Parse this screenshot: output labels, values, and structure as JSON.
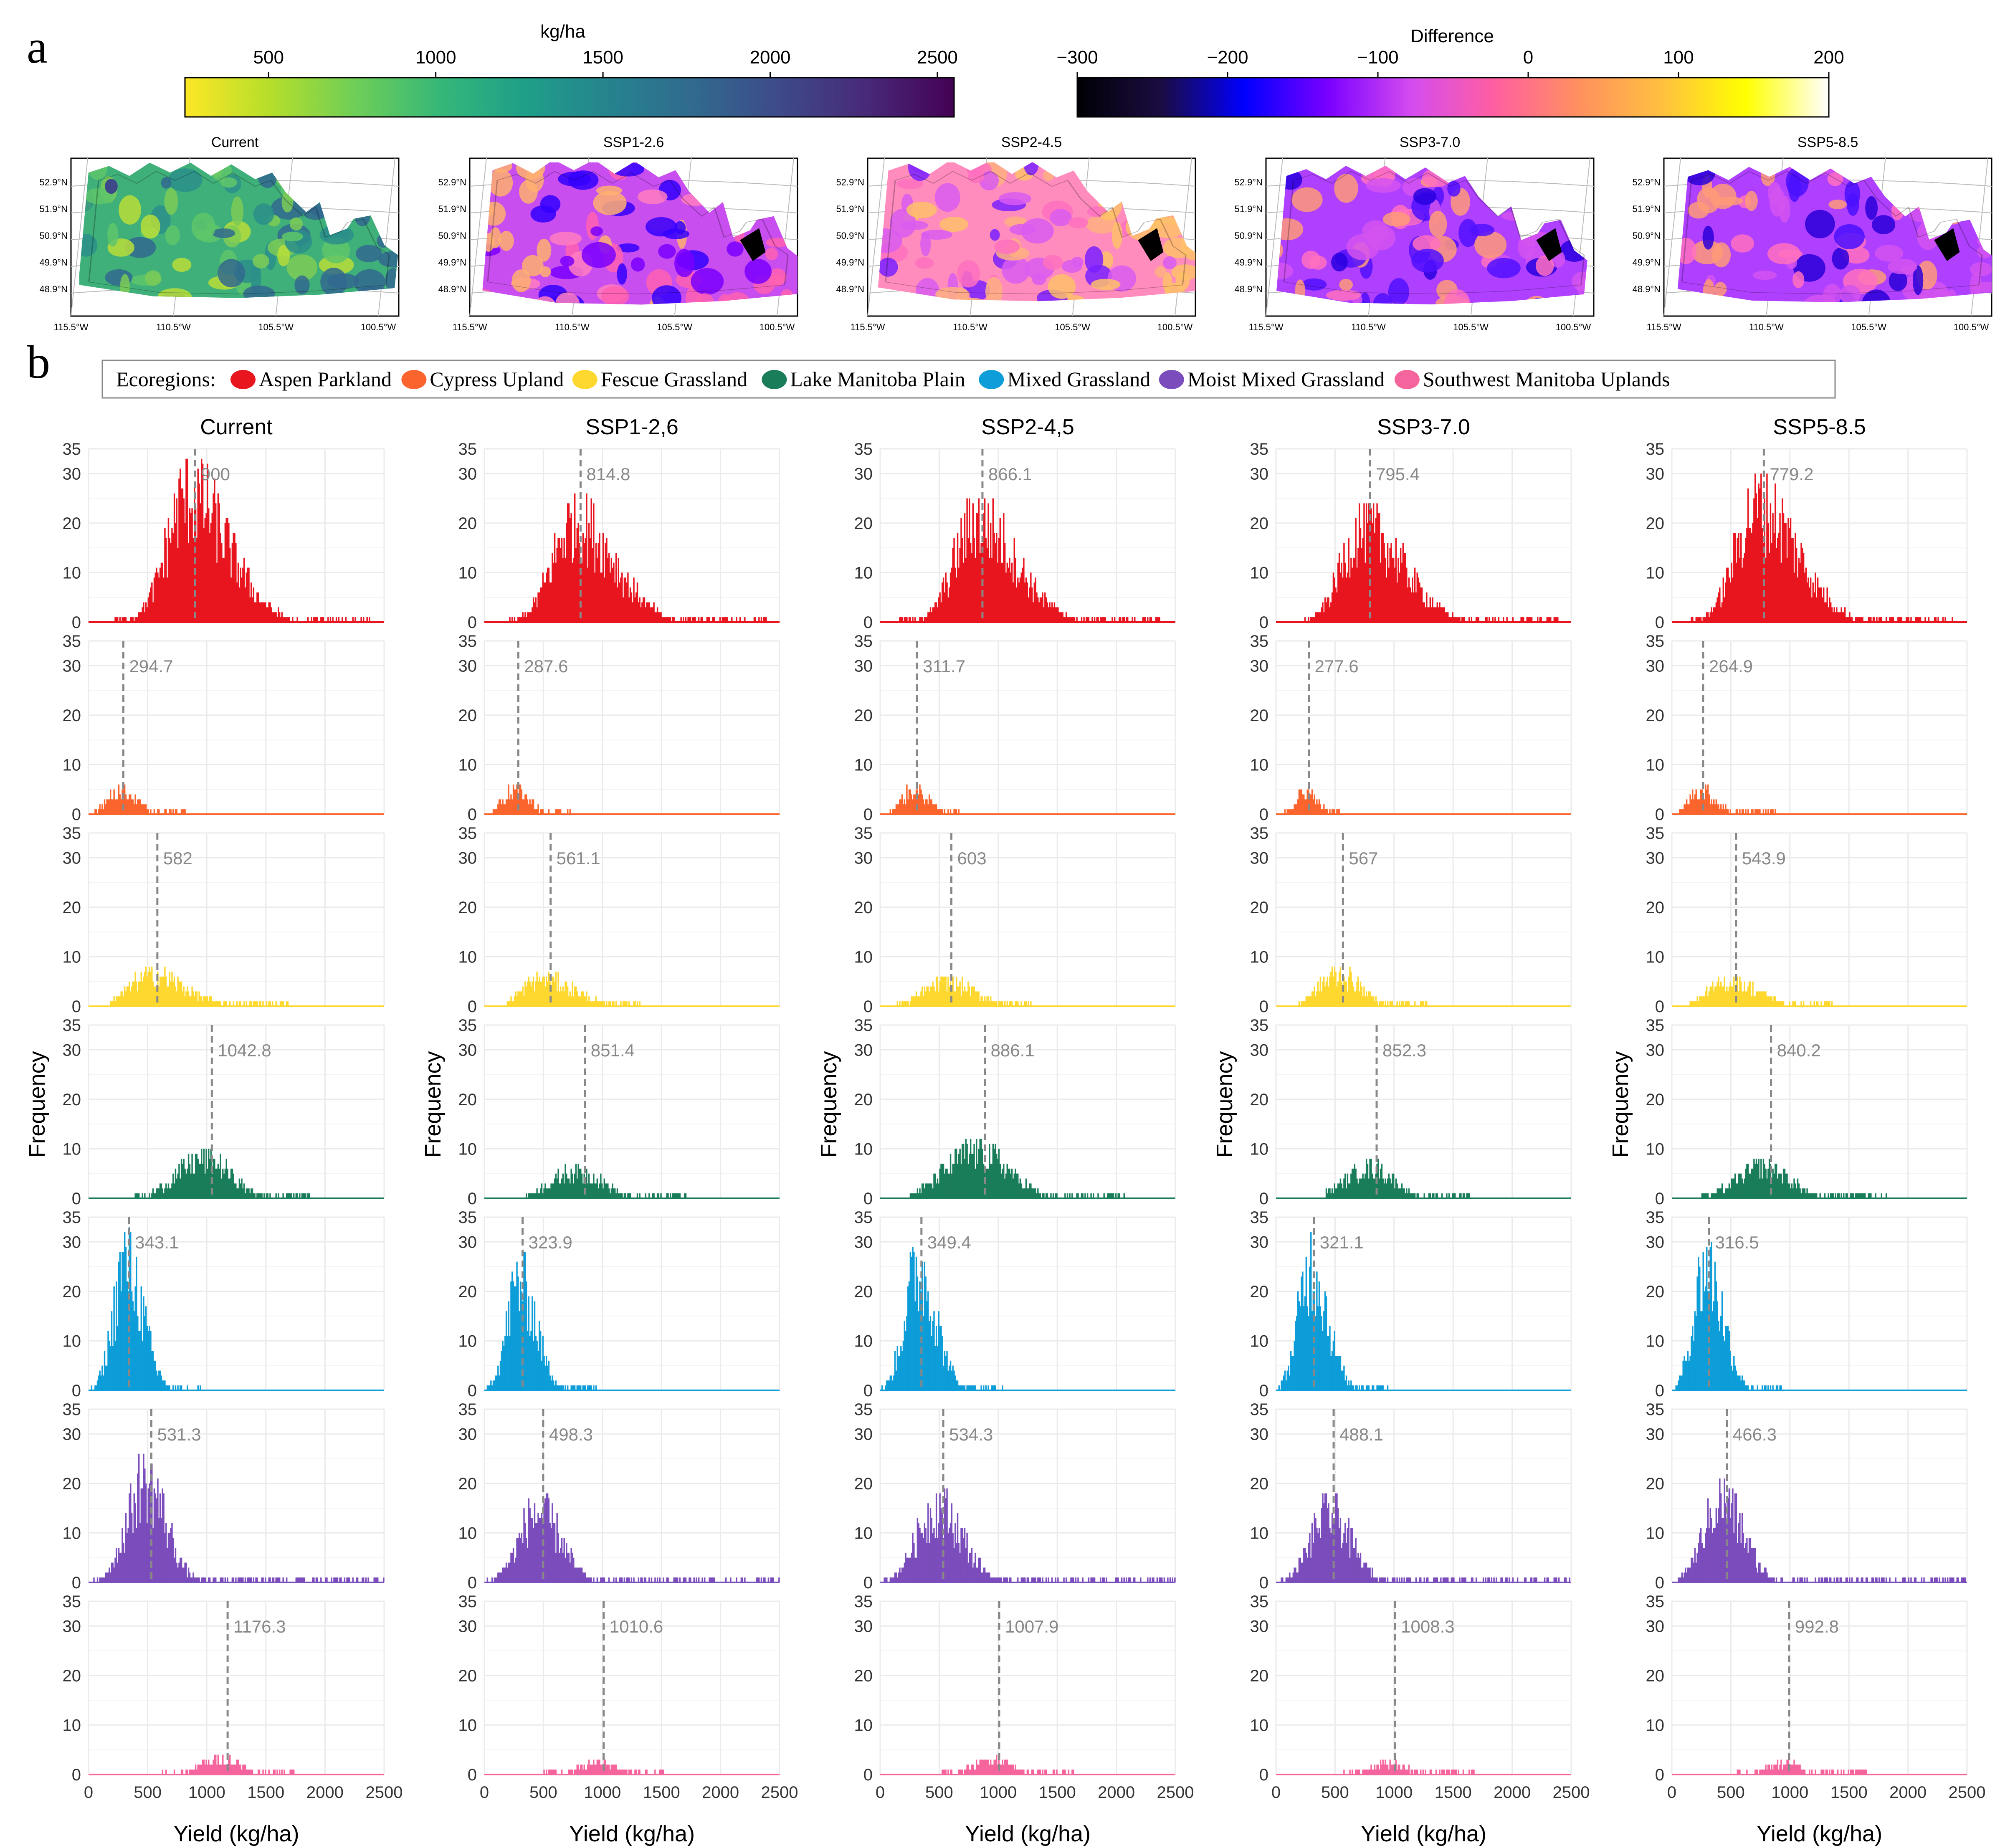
{
  "panel_labels": {
    "a": "a",
    "b": "b"
  },
  "colorbars": {
    "yield": {
      "title": "kg/ha",
      "min": 250,
      "max": 2550,
      "ticks": [
        500,
        1000,
        1500,
        2000,
        2500
      ],
      "stops": [
        "#fde725",
        "#b5de2b",
        "#6ece58",
        "#35b779",
        "#1f9e89",
        "#26828e",
        "#31688e",
        "#3e4989",
        "#482878",
        "#440154"
      ]
    },
    "difference": {
      "title": "Difference",
      "min": -300,
      "max": 200,
      "ticks": [
        -300,
        -200,
        -100,
        0,
        100,
        200
      ],
      "tick_labels": [
        "−300",
        "−200",
        "−100",
        "0",
        "100",
        "200"
      ],
      "stops": [
        "#000004",
        "#1b0c41",
        "#0000ff",
        "#7a00ff",
        "#d44cf0",
        "#ff5fa0",
        "#ff9060",
        "#ffc040",
        "#ffff00",
        "#ffffff"
      ]
    }
  },
  "maps": {
    "titles": [
      "Current",
      "SSP1-2.6",
      "SSP2-4.5",
      "SSP3-7.0",
      "SSP5-8.5"
    ],
    "lat_labels": [
      "52.9°N",
      "51.9°N",
      "50.9°N",
      "49.9°N",
      "48.9°N"
    ],
    "lon_labels": [
      "115.5°W",
      "110.5°W",
      "105.5°W",
      "100.5°W"
    ],
    "fills": [
      {
        "base": "#3fb07a",
        "accents": [
          "#7ccb56",
          "#b9de3a",
          "#2a8f8a",
          "#31688e",
          "#5ec56a"
        ]
      },
      {
        "base": "#c94ef0",
        "accents": [
          "#ff7ec0",
          "#ffb070",
          "#7a00ff",
          "#3300ff",
          "#ff60b0"
        ]
      },
      {
        "base": "#ff8cbc",
        "accents": [
          "#ffb080",
          "#d95cf0",
          "#ff70c0",
          "#7a20ff",
          "#ffc06a"
        ]
      },
      {
        "base": "#b040ff",
        "accents": [
          "#ff70c0",
          "#5010ff",
          "#ff9a78",
          "#2800e0",
          "#d454f0"
        ]
      },
      {
        "base": "#b040ff",
        "accents": [
          "#ff70c0",
          "#4a10ff",
          "#ff9a78",
          "#2a00d8",
          "#d454f0"
        ]
      }
    ]
  },
  "legend": {
    "title": "Ecoregions:",
    "items": [
      {
        "label": "Aspen Parkland",
        "color": "#e8141e"
      },
      {
        "label": "Cypress Upland",
        "color": "#fc642d"
      },
      {
        "label": "Fescue Grassland",
        "color": "#fed82f"
      },
      {
        "label": "Lake Manitoba Plain",
        "color": "#1a7d5a"
      },
      {
        "label": "Mixed Grassland",
        "color": "#0d9dd8"
      },
      {
        "label": "Moist Mixed Grassland",
        "color": "#7b4cbb"
      },
      {
        "label": "Southwest Manitoba Uplands",
        "color": "#f5649c"
      }
    ]
  },
  "histograms": {
    "column_titles": [
      "Current",
      "SSP1-2,6",
      "SSP2-4,5",
      "SSP3-7.0",
      "SSP5-8.5"
    ],
    "xlabel": "Yield (kg/ha)",
    "ylabel": "Frequency"
  },
  "chart_data": {
    "type": "bar",
    "subtype": "histogram-grid",
    "x_label": "Yield (kg/ha)",
    "y_label": "Frequency",
    "xlim": [
      0,
      2500
    ],
    "x_ticks": [
      0,
      500,
      1000,
      1500,
      2000,
      2500
    ],
    "ylim": [
      0,
      35
    ],
    "y_ticks": [
      0,
      10,
      20,
      30,
      35
    ],
    "grid": true,
    "bin_width": 10,
    "mean_line": "dashed grey vertical line at the mean with value label",
    "columns": [
      "Current",
      "SSP1-2,6",
      "SSP2-4,5",
      "SSP3-7.0",
      "SSP5-8.5"
    ],
    "rows": [
      {
        "ecoregion": "Aspen Parkland",
        "color": "#e8141e",
        "means": [
          900,
          814.8,
          866.1,
          795.4,
          779.2
        ],
        "ranges": [
          [
            210,
            2380
          ],
          [
            200,
            2390
          ],
          [
            160,
            2390
          ],
          [
            200,
            2390
          ],
          [
            160,
            2390
          ]
        ],
        "peaks": [
          33,
          26,
          26,
          24,
          30
        ],
        "spread": [
          230,
          230,
          230,
          230,
          230
        ],
        "skew": [
          2.4,
          2.4,
          2.4,
          2.4,
          2.4
        ]
      },
      {
        "ecoregion": "Cypress Upland",
        "color": "#fc642d",
        "means": [
          294.7,
          287.6,
          311.7,
          277.6,
          264.9
        ],
        "ranges": [
          [
            50,
            820
          ],
          [
            70,
            740
          ],
          [
            60,
            680
          ],
          [
            60,
            540
          ],
          [
            60,
            880
          ]
        ],
        "peaks": [
          6,
          6,
          6,
          6,
          6
        ],
        "spread": [
          140,
          130,
          130,
          110,
          120
        ],
        "skew": [
          1.6,
          1.6,
          1.6,
          1.4,
          1.8
        ]
      },
      {
        "ecoregion": "Fescue Grassland",
        "color": "#fed82f",
        "means": [
          582,
          561.1,
          603,
          567,
          543.9
        ],
        "ranges": [
          [
            170,
            1690
          ],
          [
            190,
            1320
          ],
          [
            140,
            1290
          ],
          [
            190,
            1280
          ],
          [
            150,
            1370
          ]
        ],
        "peaks": [
          8,
          7,
          6,
          8,
          6
        ],
        "spread": [
          230,
          230,
          230,
          200,
          230
        ],
        "skew": [
          2.0,
          1.8,
          1.8,
          1.6,
          1.8
        ]
      },
      {
        "ecoregion": "Lake Manitoba Plain",
        "color": "#1a7d5a",
        "means": [
          1042.8,
          851.4,
          886.1,
          852.3,
          840.2
        ],
        "ranges": [
          [
            390,
            1880
          ],
          [
            350,
            1710
          ],
          [
            250,
            2070
          ],
          [
            420,
            1640
          ],
          [
            250,
            1820
          ]
        ],
        "peaks": [
          10,
          7,
          12,
          8,
          8
        ],
        "spread": [
          280,
          270,
          320,
          250,
          280
        ],
        "skew": [
          1.3,
          1.3,
          1.4,
          1.3,
          1.3
        ]
      },
      {
        "ecoregion": "Mixed Grassland",
        "color": "#0d9dd8",
        "means": [
          343.1,
          323.9,
          349.4,
          321.1,
          316.5
        ],
        "ranges": [
          [
            20,
            950
          ],
          [
            20,
            960
          ],
          [
            10,
            1060
          ],
          [
            20,
            960
          ],
          [
            20,
            930
          ]
        ],
        "peaks": [
          33,
          28,
          31,
          32,
          32
        ],
        "spread": [
          130,
          130,
          140,
          130,
          130
        ],
        "skew": [
          1.8,
          1.8,
          1.8,
          1.8,
          1.8
        ]
      },
      {
        "ecoregion": "Moist Mixed Grassland",
        "color": "#7b4cbb",
        "means": [
          531.3,
          498.3,
          534.3,
          488.1,
          466.3
        ],
        "ranges": [
          [
            20,
            2500
          ],
          [
            20,
            2500
          ],
          [
            10,
            2500
          ],
          [
            40,
            2500
          ],
          [
            40,
            2500
          ]
        ],
        "peaks": [
          26,
          18,
          19,
          18,
          21
        ],
        "spread": [
          200,
          200,
          220,
          190,
          190
        ],
        "skew": [
          1.4,
          1.6,
          1.6,
          1.6,
          1.6
        ]
      },
      {
        "ecoregion": "Southwest Manitoba Uplands",
        "color": "#f5649c",
        "means": [
          1176.3,
          1010.6,
          1007.9,
          1008.3,
          992.8
        ],
        "ranges": [
          [
            600,
            1750
          ],
          [
            500,
            1540
          ],
          [
            520,
            1640
          ],
          [
            510,
            1690
          ],
          [
            550,
            1650
          ]
        ],
        "peaks": [
          4,
          3,
          4,
          3,
          3
        ],
        "spread": [
          220,
          200,
          200,
          200,
          200
        ],
        "skew": [
          1.2,
          1.2,
          1.2,
          1.2,
          1.2
        ]
      }
    ]
  }
}
